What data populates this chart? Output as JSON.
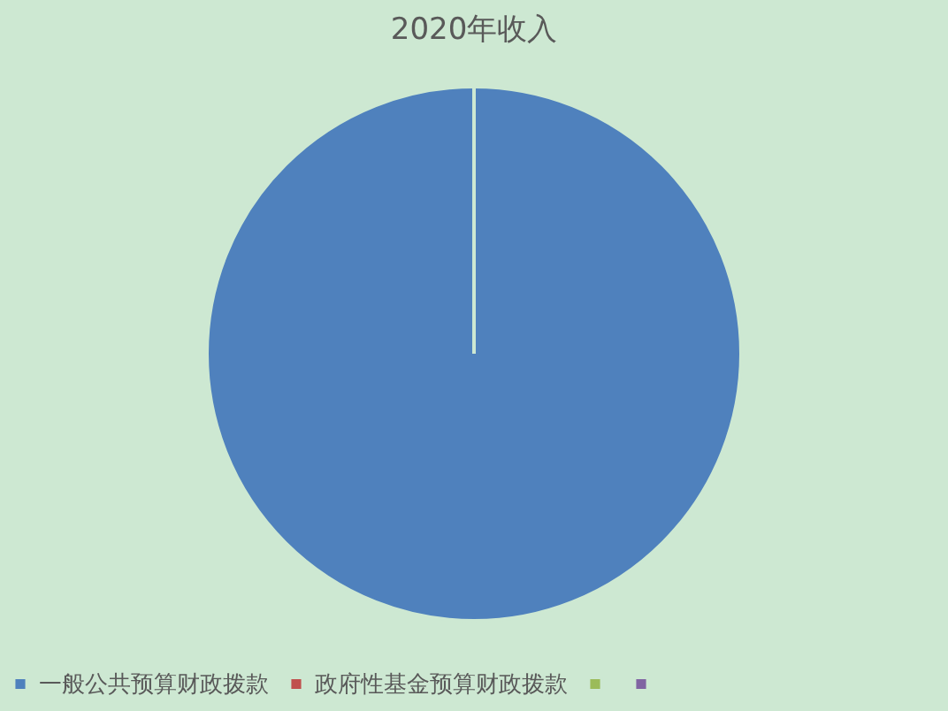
{
  "chart_data": {
    "type": "pie",
    "title": "2020年收入",
    "categories": [
      "一般公共预算财政拨款",
      "政府性基金预算财政拨款",
      null,
      null
    ],
    "values": [
      100,
      0,
      0,
      0
    ],
    "colors": [
      "#4f81bd",
      "#c0504d",
      "#9bbb59",
      "#8064a2"
    ],
    "legend": "bottom"
  }
}
